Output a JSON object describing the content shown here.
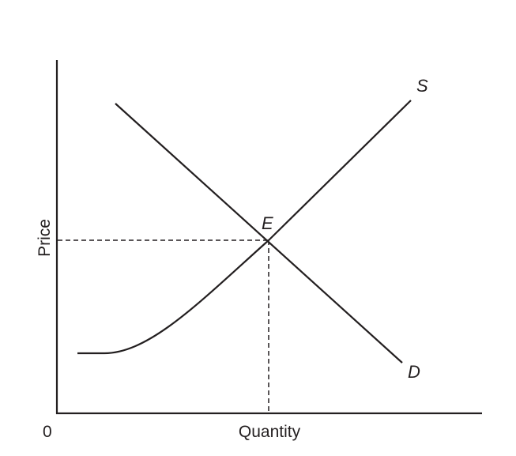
{
  "axes": {
    "x_label": "Quantity",
    "y_label": "Price",
    "origin_label": "0"
  },
  "curves": {
    "supply_label": "S",
    "demand_label": "D",
    "equilibrium_label": "E"
  },
  "colors": {
    "line": "#231f20",
    "background": "#ffffff"
  }
}
